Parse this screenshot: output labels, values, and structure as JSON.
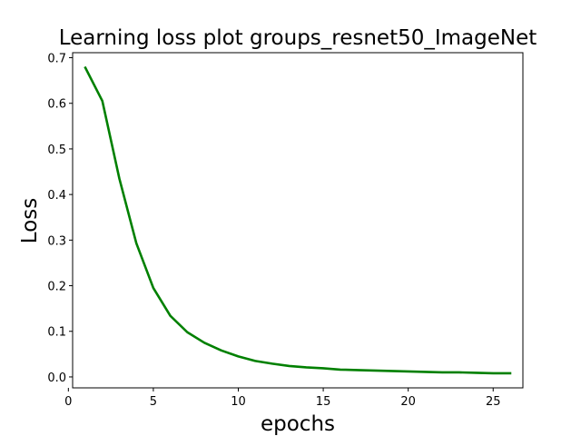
{
  "chart_data": {
    "type": "line",
    "title": "Learning loss plot groups_resnet50_ImageNet",
    "xlabel": "epochs",
    "ylabel": "Loss",
    "xlim": [
      0.25,
      26.75
    ],
    "ylim": [
      -0.024,
      0.711
    ],
    "xticks": [
      0,
      5,
      10,
      15,
      20,
      25
    ],
    "yticks": [
      0.0,
      0.1,
      0.2,
      0.3,
      0.4,
      0.5,
      0.6,
      0.7
    ],
    "grid": false,
    "series": [
      {
        "color": "#008000",
        "x": [
          1,
          2,
          3,
          4,
          5,
          6,
          7,
          8,
          9,
          10,
          11,
          12,
          13,
          14,
          15,
          16,
          17,
          18,
          19,
          20,
          21,
          22,
          23,
          24,
          25,
          26
        ],
        "y": [
          0.678,
          0.605,
          0.435,
          0.293,
          0.195,
          0.134,
          0.098,
          0.075,
          0.058,
          0.045,
          0.035,
          0.029,
          0.024,
          0.021,
          0.019,
          0.016,
          0.015,
          0.014,
          0.013,
          0.012,
          0.011,
          0.01,
          0.01,
          0.009,
          0.008,
          0.008
        ]
      }
    ]
  }
}
